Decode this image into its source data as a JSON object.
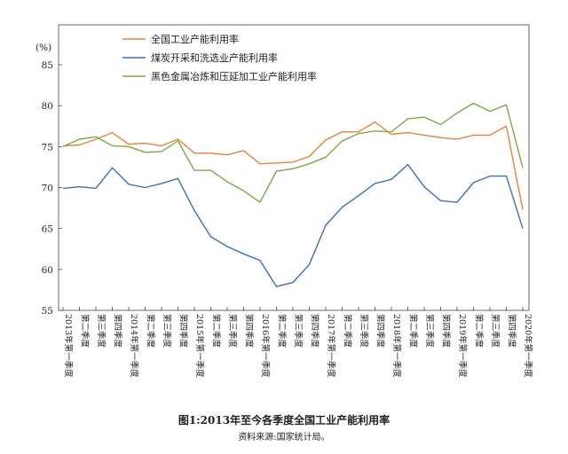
{
  "chart_data": {
    "type": "line",
    "y_unit": "(%)",
    "ylim": [
      55,
      85
    ],
    "yticks": [
      55,
      60,
      65,
      70,
      75,
      80,
      85
    ],
    "grid": false,
    "legend_position": "top-left",
    "categories": [
      "2013年第一季度",
      "第二季度",
      "第三季度",
      "第四季度",
      "2014年第一季度",
      "第二季度",
      "第三季度",
      "第四季度",
      "2015年第一季度",
      "第二季度",
      "第三季度",
      "第四季度",
      "2016年第一季度",
      "第二季度",
      "第三季度",
      "第四季度",
      "2017年第一季度",
      "第二季度",
      "第三季度",
      "第四季度",
      "2018年第一季度",
      "第二季度",
      "第三季度",
      "第四季度",
      "2019年第一季度",
      "第二季度",
      "第三季度",
      "第四季度",
      "2020年第一季度"
    ],
    "series": [
      {
        "name": "全国工业产能利用率",
        "color": "#e8823a",
        "values": [
          75.1,
          75.2,
          75.9,
          76.7,
          75.3,
          75.4,
          75.1,
          75.9,
          74.2,
          74.2,
          74.0,
          74.5,
          72.9,
          73.0,
          73.1,
          73.8,
          75.8,
          76.8,
          76.8,
          78.0,
          76.5,
          76.7,
          76.4,
          76.1,
          75.9,
          76.4,
          76.4,
          77.5,
          67.3
        ]
      },
      {
        "name": "煤炭开采和洗选业产能利用率",
        "color": "#3f6fb5",
        "values": [
          69.9,
          70.1,
          69.9,
          72.4,
          70.4,
          70.0,
          70.5,
          71.1,
          67.2,
          64.0,
          62.8,
          61.9,
          61.1,
          57.9,
          58.4,
          60.6,
          65.4,
          67.6,
          69.0,
          70.5,
          71.0,
          72.8,
          70.1,
          68.4,
          68.2,
          70.6,
          71.4,
          71.4,
          65.0
        ]
      },
      {
        "name": "黑色金属冶炼和压延加工业产能利用率",
        "color": "#7aaa48",
        "values": [
          75.0,
          75.9,
          76.2,
          75.1,
          75.0,
          74.3,
          74.4,
          75.7,
          72.1,
          72.1,
          70.7,
          69.6,
          68.2,
          72.0,
          72.3,
          72.9,
          73.7,
          75.7,
          76.6,
          76.9,
          76.8,
          78.4,
          78.6,
          77.7,
          79.1,
          80.3,
          79.3,
          80.1,
          72.4
        ]
      }
    ]
  },
  "caption": {
    "title": "图1:2013年至今各季度全国工业产能利用率",
    "source": "资料来源:国家统计局。"
  }
}
